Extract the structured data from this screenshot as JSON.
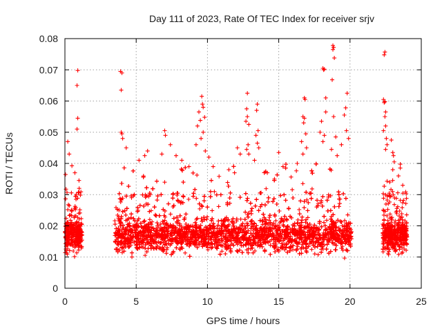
{
  "chart_data": {
    "type": "scatter",
    "title": "Day 111 of 2023, Rate Of TEC Index for receiver srjv",
    "xlabel": "GPS time / hours",
    "ylabel": "ROTI / TECUs",
    "xlim": [
      0,
      25
    ],
    "ylim": [
      0,
      0.08
    ],
    "xticks": [
      0,
      5,
      10,
      15,
      20,
      25
    ],
    "yticks": [
      0,
      0.01,
      0.02,
      0.03,
      0.04,
      0.05,
      0.06,
      0.07,
      0.08
    ],
    "xtick_labels": [
      "0",
      "5",
      "10",
      "15",
      "20",
      "25"
    ],
    "ytick_labels": [
      "0",
      "0.01",
      "0.02",
      "0.03",
      "0.04",
      "0.05",
      "0.06",
      "0.07",
      "0.08"
    ],
    "grid": true,
    "marker": "plus",
    "color": "#ff0000",
    "series": [
      {
        "coverage_hours": [
          [
            0,
            1.2
          ],
          [
            3.5,
            20.1
          ],
          [
            22.3,
            24
          ]
        ],
        "typical_range": [
          0.005,
          0.03
        ],
        "median": 0.014,
        "points": [
          [
            0.9,
            0.0698
          ],
          [
            0.85,
            0.065
          ],
          [
            0.9,
            0.0545
          ],
          [
            0.85,
            0.051
          ],
          [
            0.2,
            0.047
          ],
          [
            0.3,
            0.043
          ],
          [
            0.7,
            0.037
          ],
          [
            1.0,
            0.032
          ],
          [
            3.9,
            0.0695
          ],
          [
            4.0,
            0.069
          ],
          [
            3.95,
            0.0635
          ],
          [
            3.95,
            0.05
          ],
          [
            4.0,
            0.0495
          ],
          [
            4.05,
            0.048
          ],
          [
            4.3,
            0.045
          ],
          [
            5.8,
            0.044
          ],
          [
            5.6,
            0.0425
          ],
          [
            7.0,
            0.0505
          ],
          [
            7.05,
            0.049
          ],
          [
            7.4,
            0.046
          ],
          [
            6.8,
            0.043
          ],
          [
            5.2,
            0.041
          ],
          [
            7.8,
            0.0425
          ],
          [
            8.2,
            0.041
          ],
          [
            8.7,
            0.039
          ],
          [
            9.6,
            0.0615
          ],
          [
            9.65,
            0.059
          ],
          [
            9.7,
            0.058
          ],
          [
            9.4,
            0.0565
          ],
          [
            9.8,
            0.0548
          ],
          [
            9.5,
            0.0538
          ],
          [
            9.3,
            0.052
          ],
          [
            9.7,
            0.05
          ],
          [
            9.55,
            0.048
          ],
          [
            9.2,
            0.046
          ],
          [
            9.85,
            0.044
          ],
          [
            10.1,
            0.042
          ],
          [
            10.4,
            0.039
          ],
          [
            11.5,
            0.038
          ],
          [
            11.9,
            0.037
          ],
          [
            12.3,
            0.043
          ],
          [
            12.1,
            0.045
          ],
          [
            12.8,
            0.0625
          ],
          [
            12.75,
            0.0575
          ],
          [
            12.8,
            0.055
          ],
          [
            12.7,
            0.0535
          ],
          [
            12.9,
            0.0525
          ],
          [
            12.85,
            0.046
          ],
          [
            12.75,
            0.0445
          ],
          [
            12.9,
            0.043
          ],
          [
            13.5,
            0.059
          ],
          [
            13.45,
            0.057
          ],
          [
            13.55,
            0.0505
          ],
          [
            13.4,
            0.049
          ],
          [
            13.5,
            0.0465
          ],
          [
            13.6,
            0.045
          ],
          [
            13.3,
            0.041
          ],
          [
            14.2,
            0.037
          ],
          [
            14.7,
            0.035
          ],
          [
            15.0,
            0.0435
          ],
          [
            15.3,
            0.039
          ],
          [
            16.8,
            0.061
          ],
          [
            16.85,
            0.0605
          ],
          [
            16.7,
            0.055
          ],
          [
            16.8,
            0.0545
          ],
          [
            16.75,
            0.053
          ],
          [
            16.9,
            0.0495
          ],
          [
            16.6,
            0.047
          ],
          [
            16.95,
            0.045
          ],
          [
            16.7,
            0.043
          ],
          [
            16.3,
            0.04
          ],
          [
            17.9,
            0.05
          ],
          [
            18.1,
            0.0705
          ],
          [
            18.2,
            0.0702
          ],
          [
            18.15,
            0.07
          ],
          [
            18.3,
            0.061
          ],
          [
            18.3,
            0.0565
          ],
          [
            18.0,
            0.0535
          ],
          [
            18.2,
            0.049
          ],
          [
            18.1,
            0.047
          ],
          [
            18.8,
            0.0778
          ],
          [
            18.85,
            0.0772
          ],
          [
            18.8,
            0.0765
          ],
          [
            18.9,
            0.0738
          ],
          [
            18.75,
            0.0668
          ],
          [
            18.85,
            0.055
          ],
          [
            19.0,
            0.0485
          ],
          [
            18.7,
            0.0445
          ],
          [
            19.1,
            0.0425
          ],
          [
            19.4,
            0.046
          ],
          [
            19.8,
            0.0625
          ],
          [
            19.7,
            0.0578
          ],
          [
            19.6,
            0.0555
          ],
          [
            19.75,
            0.0505
          ],
          [
            19.9,
            0.048
          ],
          [
            22.45,
            0.0757
          ],
          [
            22.4,
            0.0748
          ],
          [
            22.35,
            0.0605
          ],
          [
            22.45,
            0.0598
          ],
          [
            22.4,
            0.0595
          ],
          [
            22.5,
            0.0565
          ],
          [
            22.45,
            0.055
          ],
          [
            22.5,
            0.052
          ],
          [
            22.35,
            0.0505
          ],
          [
            22.55,
            0.048
          ],
          [
            22.6,
            0.046
          ],
          [
            22.5,
            0.0445
          ],
          [
            22.9,
            0.0475
          ],
          [
            23.0,
            0.0435
          ],
          [
            23.05,
            0.0425
          ],
          [
            23.1,
            0.0405
          ],
          [
            23.0,
            0.038
          ],
          [
            23.4,
            0.036
          ],
          [
            23.7,
            0.033
          ]
        ]
      }
    ]
  }
}
